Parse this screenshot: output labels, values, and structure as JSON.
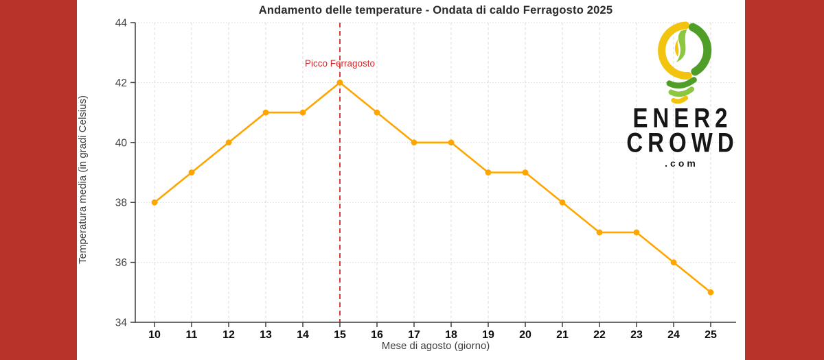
{
  "frame": {
    "side_color": "#b8342a"
  },
  "chart_data": {
    "type": "line",
    "title": "Andamento delle temperature - Ondata di caldo Ferragosto 2025",
    "xlabel": "Mese di agosto (giorno)",
    "ylabel": "Temperatura media (in gradi Celsius)",
    "x": [
      10,
      11,
      12,
      13,
      14,
      15,
      16,
      17,
      18,
      19,
      20,
      21,
      22,
      23,
      24,
      25
    ],
    "values": [
      38,
      39,
      40,
      41,
      41,
      42,
      41,
      40,
      40,
      39,
      39,
      38,
      37,
      37,
      36,
      35
    ],
    "ylim": [
      34,
      44
    ],
    "yticks": [
      34,
      36,
      38,
      40,
      42,
      44
    ],
    "grid": true,
    "legend": "none",
    "series_color": "#FFA500",
    "annotation": {
      "text": "Picco Ferragosto",
      "x": 15,
      "color": "#d62728"
    }
  },
  "logo": {
    "line1": "ENER2",
    "line2": "CROWD",
    "line3": ".com",
    "colors": {
      "yellow": "#f2c410",
      "green_dark": "#4f9e28",
      "green_light": "#8dc63f",
      "text": "#161616"
    }
  }
}
